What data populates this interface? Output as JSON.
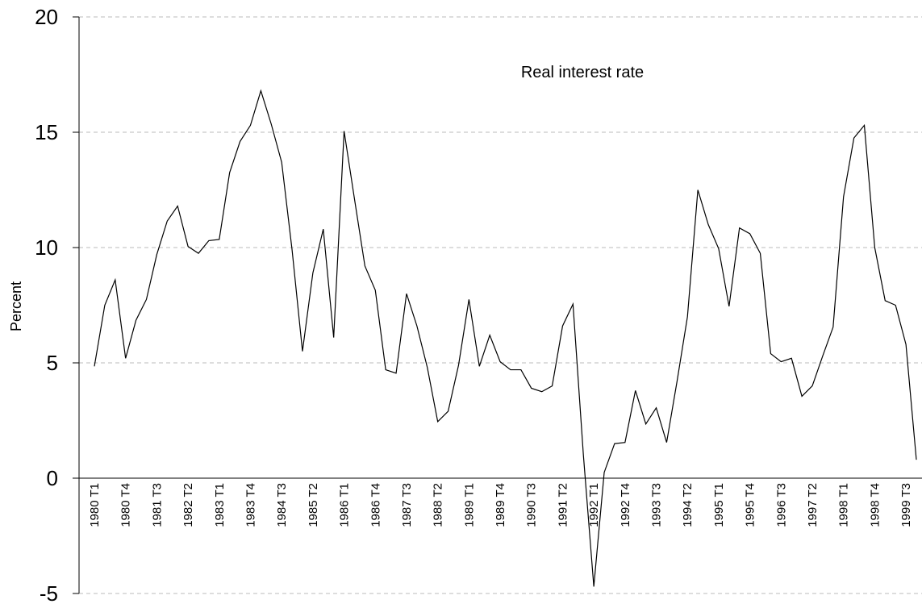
{
  "chart_data": {
    "type": "line",
    "ylabel": "Percent",
    "annotation": "Real interest rate",
    "color": "#000000",
    "grid": true,
    "ylim": [
      -5,
      20
    ],
    "yticks": [
      -5,
      0,
      5,
      10,
      15,
      20
    ],
    "categories": [
      "1980 T1",
      null,
      null,
      "1980 T4",
      null,
      null,
      "1981 T3",
      null,
      null,
      "1982 T2",
      null,
      null,
      "1983 T1",
      null,
      null,
      "1983 T4",
      null,
      null,
      "1984 T3",
      null,
      null,
      "1985 T2",
      null,
      null,
      "1986 T1",
      null,
      null,
      "1986 T4",
      null,
      null,
      "1987 T3",
      null,
      null,
      "1988 T2",
      null,
      null,
      "1989 T1",
      null,
      null,
      "1989 T4",
      null,
      null,
      "1990 T3",
      null,
      null,
      "1991 T2",
      null,
      null,
      "1992 T1",
      null,
      null,
      "1992 T4",
      null,
      null,
      "1993 T3",
      null,
      null,
      "1994 T2",
      null,
      null,
      "1995 T1",
      null,
      null,
      "1995 T4",
      null,
      null,
      "1996 T3",
      null,
      null,
      "1997 T2",
      null,
      null,
      "1998 T1",
      null,
      null,
      "1998 T4",
      null,
      null,
      "1999 T3",
      null
    ],
    "values": [
      4.85,
      7.5,
      8.6,
      5.2,
      6.85,
      7.75,
      9.7,
      11.15,
      11.8,
      10.05,
      9.75,
      10.3,
      10.35,
      13.25,
      14.6,
      15.3,
      16.8,
      15.35,
      13.7,
      9.9,
      5.5,
      8.9,
      10.8,
      6.1,
      15.05,
      12.1,
      9.2,
      8.15,
      4.7,
      4.55,
      8.0,
      6.6,
      4.8,
      2.45,
      2.9,
      4.9,
      7.75,
      4.85,
      6.2,
      5.05,
      4.7,
      4.7,
      3.9,
      3.75,
      4.0,
      6.6,
      7.55,
      1.0,
      -4.7,
      0.25,
      1.5,
      1.55,
      3.8,
      2.35,
      3.05,
      1.55,
      4.2,
      7.0,
      12.5,
      11.0,
      9.95,
      7.45,
      10.85,
      10.6,
      9.75,
      5.4,
      5.05,
      5.2,
      3.55,
      4.0,
      5.3,
      6.55,
      12.2,
      14.75,
      15.3,
      10.0,
      7.7,
      7.5,
      5.8,
      0.8
    ]
  }
}
